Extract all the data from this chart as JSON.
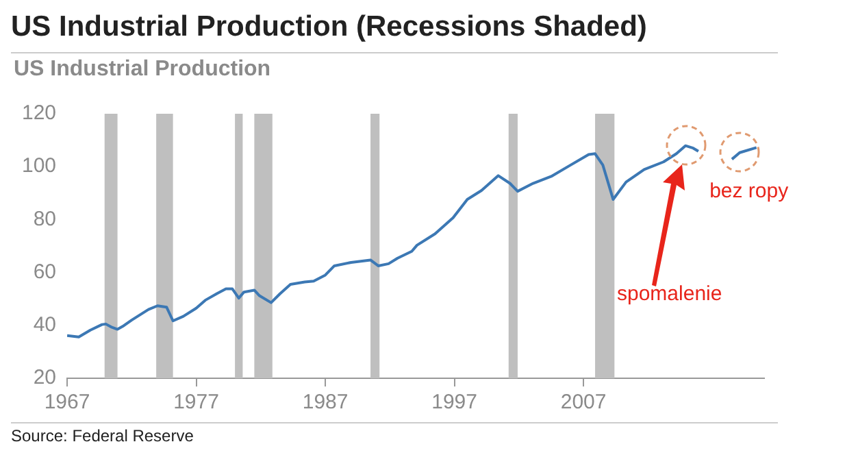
{
  "chart_data": {
    "type": "line",
    "title": "US Industrial Production (Recessions Shaded)",
    "subtitle": "US Industrial Production",
    "xlim": [
      1967,
      2021
    ],
    "xticks": [
      1967,
      1977,
      1987,
      1997,
      2007
    ],
    "ylim": [
      20,
      120
    ],
    "yticks": [
      20,
      40,
      60,
      80,
      100,
      120
    ],
    "grid": false,
    "legend": false,
    "marker": "none",
    "line_style": "solid",
    "series": [
      {
        "color": "#3c78b4",
        "x": [
          1967,
          1967.9,
          1968.8,
          1969.7,
          1970,
          1970.4,
          1970.9,
          1971.3,
          1972,
          1973.3,
          1974,
          1974.7,
          1975.2,
          1976,
          1977,
          1977.7,
          1978.6,
          1979.3,
          1979.8,
          1980.3,
          1980.7,
          1981.5,
          1981.9,
          1982.8,
          1983.5,
          1984.3,
          1985.4,
          1986.1,
          1987,
          1987.7,
          1989,
          1990.5,
          1991.1,
          1991.9,
          1992.6,
          1993.7,
          1994.1,
          1995.5,
          1996.9,
          1998,
          1999.1,
          2000.4,
          2001.3,
          2001.9,
          2003.1,
          2004.5,
          2006,
          2007.4,
          2007.9,
          2008.5,
          2009.3,
          2010.3,
          2011.7,
          2013.2,
          2014.2,
          2014.9,
          2015.5,
          2015.9
        ],
        "values": [
          36.1,
          35.6,
          38.2,
          40.3,
          40.5,
          39.4,
          38.5,
          39.6,
          42,
          46,
          47.4,
          46.9,
          41.7,
          43.4,
          46.5,
          49.5,
          52,
          53.8,
          53.8,
          50.3,
          52.6,
          53.3,
          51.2,
          48.6,
          52,
          55.5,
          56.4,
          56.7,
          59,
          62.5,
          63.8,
          64.7,
          62.5,
          63.3,
          65.4,
          68,
          70.3,
          74.6,
          80.7,
          87.6,
          91,
          96.6,
          93.7,
          90.7,
          93.7,
          96.3,
          100.6,
          104.6,
          104.9,
          100.6,
          87.6,
          94.2,
          98.9,
          101.8,
          104.9,
          107.9,
          107,
          105.8
        ]
      },
      {
        "color": "#3c78b4",
        "x": [
          2018.5,
          2019.1,
          2020.4
        ],
        "values": [
          102.8,
          105.3,
          107.2
        ]
      }
    ],
    "bands": [
      {
        "axis": "x",
        "from": 1969.9,
        "to": 1970.9,
        "color": "#bfbfbf"
      },
      {
        "axis": "x",
        "from": 1973.9,
        "to": 1975.2,
        "color": "#bfbfbf"
      },
      {
        "axis": "x",
        "from": 1980,
        "to": 1980.6,
        "color": "#bfbfbf"
      },
      {
        "axis": "x",
        "from": 1981.5,
        "to": 1982.9,
        "color": "#bfbfbf"
      },
      {
        "axis": "x",
        "from": 1990.5,
        "to": 1991.2,
        "color": "#bfbfbf"
      },
      {
        "axis": "x",
        "from": 2001.2,
        "to": 2001.9,
        "color": "#bfbfbf"
      },
      {
        "axis": "x",
        "from": 2007.9,
        "to": 2009.4,
        "color": "#bfbfbf"
      }
    ],
    "annotations": [
      "spomalenie",
      "bez ropy",
      "Source: Federal Reserve"
    ]
  }
}
